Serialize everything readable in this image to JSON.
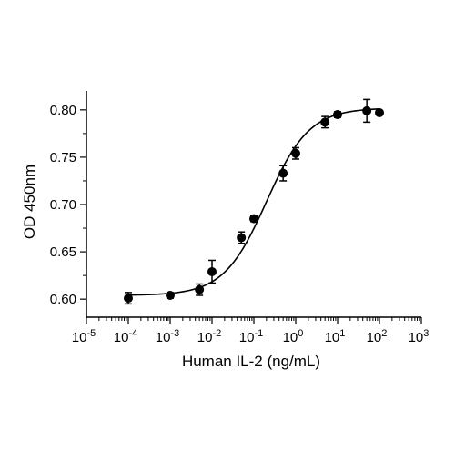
{
  "chart_data": {
    "type": "scatter",
    "xscale": "log",
    "x_axis_range": [
      1e-05,
      1000
    ],
    "y_axis_range": [
      0.58,
      0.82
    ],
    "xlabel": "Human IL-2 (ng/mL)",
    "ylabel": "OD 450nm",
    "x_tick_base": "10",
    "x_tick_exponents": [
      "-5",
      "-4",
      "-3",
      "-2",
      "-1",
      "0",
      "1",
      "2",
      "3"
    ],
    "y_ticks": [
      "0.60",
      "0.65",
      "0.70",
      "0.75",
      "0.80"
    ],
    "y_tick_values": [
      0.6,
      0.65,
      0.7,
      0.75,
      0.8
    ],
    "grid": false,
    "marker_color": "#000000",
    "line_color": "#000000",
    "points": [
      {
        "x": 0.0001,
        "y": 0.601,
        "err": 0.006
      },
      {
        "x": 0.001,
        "y": 0.604,
        "err": 0.003
      },
      {
        "x": 0.005,
        "y": 0.61,
        "err": 0.006
      },
      {
        "x": 0.01,
        "y": 0.629,
        "err": 0.012
      },
      {
        "x": 0.05,
        "y": 0.665,
        "err": 0.006
      },
      {
        "x": 0.1,
        "y": 0.685,
        "err": 0.003
      },
      {
        "x": 0.5,
        "y": 0.733,
        "err": 0.008
      },
      {
        "x": 1,
        "y": 0.754,
        "err": 0.006
      },
      {
        "x": 5,
        "y": 0.787,
        "err": 0.006
      },
      {
        "x": 10,
        "y": 0.795,
        "err": 0.003
      },
      {
        "x": 50,
        "y": 0.799,
        "err": 0.012
      },
      {
        "x": 100,
        "y": 0.797,
        "err": 0.001
      }
    ],
    "fit_curve": {
      "model": "4PL",
      "bottom": 0.604,
      "top": 0.802,
      "ec50": 0.2,
      "hill": 0.85
    }
  }
}
